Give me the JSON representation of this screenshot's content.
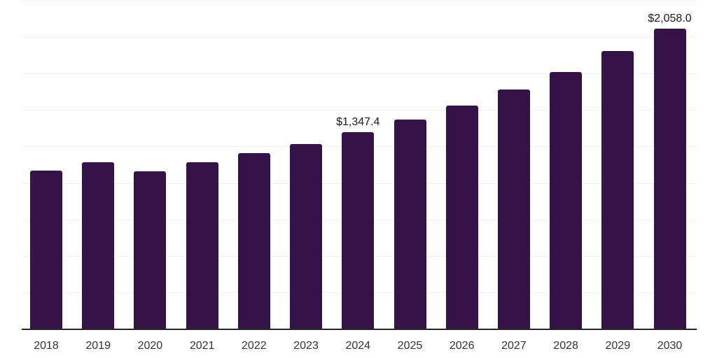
{
  "chart_data": {
    "type": "bar",
    "title": "",
    "xlabel": "",
    "ylabel": "",
    "categories": [
      "2018",
      "2019",
      "2020",
      "2021",
      "2022",
      "2023",
      "2024",
      "2025",
      "2026",
      "2027",
      "2028",
      "2029",
      "2030"
    ],
    "values": [
      1085,
      1140,
      1078,
      1143,
      1204,
      1268,
      1347.4,
      1434,
      1530,
      1641,
      1761,
      1905,
      2058.0
    ],
    "data_labels": [
      {
        "index": 6,
        "text": "$1,347.4"
      },
      {
        "index": 12,
        "text": "$2,058.0"
      }
    ],
    "ylim": [
      0,
      2250
    ],
    "gridline_step": 250,
    "grid": true,
    "legend_position": "none",
    "y_axis_labels_visible": false,
    "colors": {
      "bar": "#351347",
      "axis": "#262626",
      "gridline": "#f0f0f0",
      "value_label": "#1a1a1a",
      "tick_label": "#333333"
    }
  }
}
